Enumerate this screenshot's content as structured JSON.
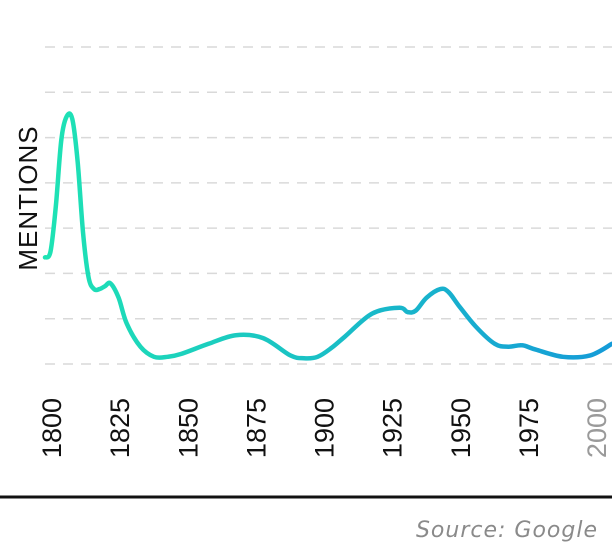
{
  "chart_data": {
    "type": "line",
    "ylabel": "MENTIONS",
    "xlabel": "",
    "source": "Source: Google",
    "x_ticks": [
      "1800",
      "1825",
      "1850",
      "1875",
      "1900",
      "1925",
      "1950",
      "1975",
      "2000"
    ],
    "muted_ticks": [
      "2000"
    ],
    "xlim": [
      1800,
      2008
    ],
    "ylim": [
      0,
      11
    ],
    "grid": true,
    "colors": {
      "line_start": "#1ee3b4",
      "line_end": "#159bd8",
      "grid": "#d9d9d9"
    },
    "series": [
      {
        "x": [
          1800,
          1802,
          1804,
          1806,
          1808,
          1810,
          1812,
          1814,
          1816,
          1818,
          1820,
          1822,
          1824,
          1827,
          1830,
          1835,
          1840,
          1845,
          1850,
          1860,
          1870,
          1880,
          1890,
          1895,
          1900,
          1905,
          1910,
          1920,
          1930,
          1933,
          1936,
          1940,
          1945,
          1948,
          1952,
          1958,
          1965,
          1970,
          1975,
          1980,
          1990,
          2000,
          2008
        ],
        "y": [
          3.7,
          3.9,
          5.5,
          7.8,
          8.6,
          8.5,
          7.0,
          4.5,
          3.0,
          2.6,
          2.6,
          2.7,
          2.8,
          2.3,
          1.4,
          0.6,
          0.25,
          0.25,
          0.35,
          0.7,
          1.0,
          0.9,
          0.3,
          0.2,
          0.25,
          0.55,
          0.95,
          1.75,
          1.95,
          1.8,
          1.85,
          2.3,
          2.6,
          2.5,
          2.0,
          1.3,
          0.7,
          0.6,
          0.65,
          0.5,
          0.25,
          0.3,
          0.7
        ]
      }
    ]
  }
}
